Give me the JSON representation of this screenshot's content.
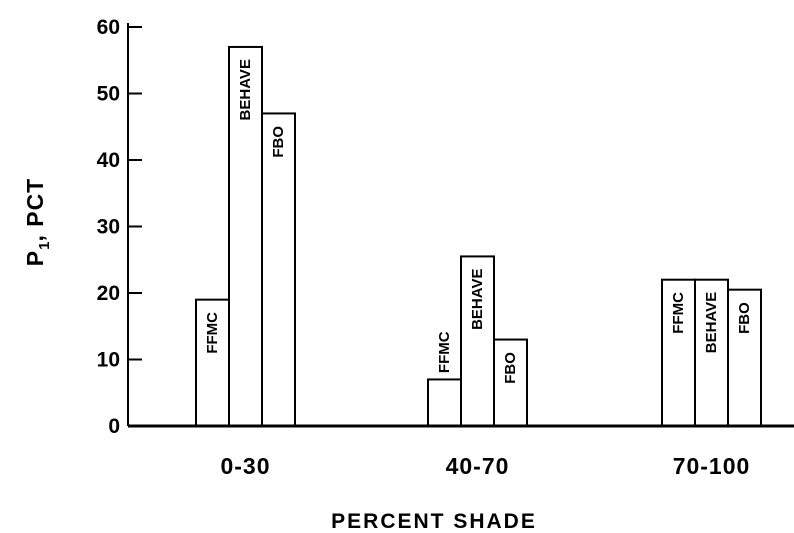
{
  "chart_data": {
    "type": "bar",
    "ylabel": {
      "main": "P",
      "sub": "1",
      "rest": ", PCT"
    },
    "xlabel": "PERCENT SHADE",
    "ylim": [
      0,
      60
    ],
    "yticks": [
      "0",
      "10",
      "20",
      "30",
      "40",
      "50",
      "60"
    ],
    "categories": [
      "0-30",
      "40-70",
      "70-100"
    ],
    "series_names": [
      "FFMC",
      "BEHAVE",
      "FBO"
    ],
    "values": [
      [
        19,
        57,
        47
      ],
      [
        7,
        25.5,
        13
      ],
      [
        22,
        22,
        20.5
      ]
    ],
    "bar_fill": "#ffffff",
    "bar_stroke": "#000000"
  }
}
